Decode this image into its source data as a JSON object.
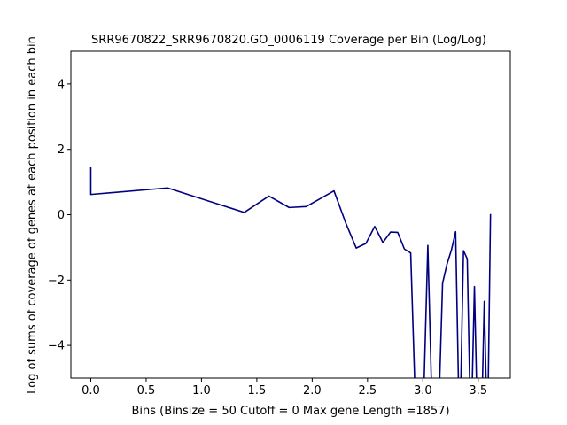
{
  "chart_data": {
    "type": "line",
    "title": "SRR9670822_SRR9670820.GO_0006119 Coverage per Bin (Log/Log)",
    "xlabel": "Bins  (Binsize = 50 Cutoff = 0 Max gene Length =1857)",
    "ylabel": "Log of sums of coverage of genes at each position in each bin",
    "xlim": [
      -0.18,
      3.79
    ],
    "ylim": [
      -5,
      5
    ],
    "xticks": [
      0.0,
      0.5,
      1.0,
      1.5,
      2.0,
      2.5,
      3.0,
      3.5
    ],
    "xtick_labels": [
      "0.0",
      "0.5",
      "1.0",
      "1.5",
      "2.0",
      "2.5",
      "3.0",
      "3.5"
    ],
    "yticks": [
      -4,
      -2,
      0,
      2,
      4
    ],
    "ytick_labels": [
      "−4",
      "−2",
      "0",
      "2",
      "4"
    ],
    "grid": false,
    "line_color": "#000080",
    "series": [
      {
        "x": [
          0.0,
          0.0,
          0.693,
          1.386,
          1.609,
          1.792,
          1.946,
          2.197,
          2.303,
          2.398,
          2.485,
          2.565,
          2.639,
          2.708,
          2.773,
          2.833,
          2.89,
          2.944,
          2.996,
          3.045,
          3.091,
          3.135,
          3.178,
          3.219,
          3.258,
          3.296,
          3.332,
          3.367,
          3.401,
          3.434,
          3.466,
          3.497,
          3.526,
          3.555,
          3.584,
          3.611
        ],
        "y": [
          1.45,
          0.62,
          0.82,
          0.07,
          0.57,
          0.22,
          0.25,
          0.73,
          -0.25,
          -1.02,
          -0.88,
          -0.36,
          -0.85,
          -0.53,
          -0.54,
          -1.05,
          -1.17,
          -7.0,
          -7.0,
          -0.94,
          -7.0,
          -7.0,
          -2.1,
          -1.5,
          -1.08,
          -0.52,
          -7.0,
          -1.1,
          -1.35,
          -7.0,
          -2.2,
          -7.0,
          -7.0,
          -2.65,
          -7.0,
          0.02
        ]
      }
    ]
  }
}
